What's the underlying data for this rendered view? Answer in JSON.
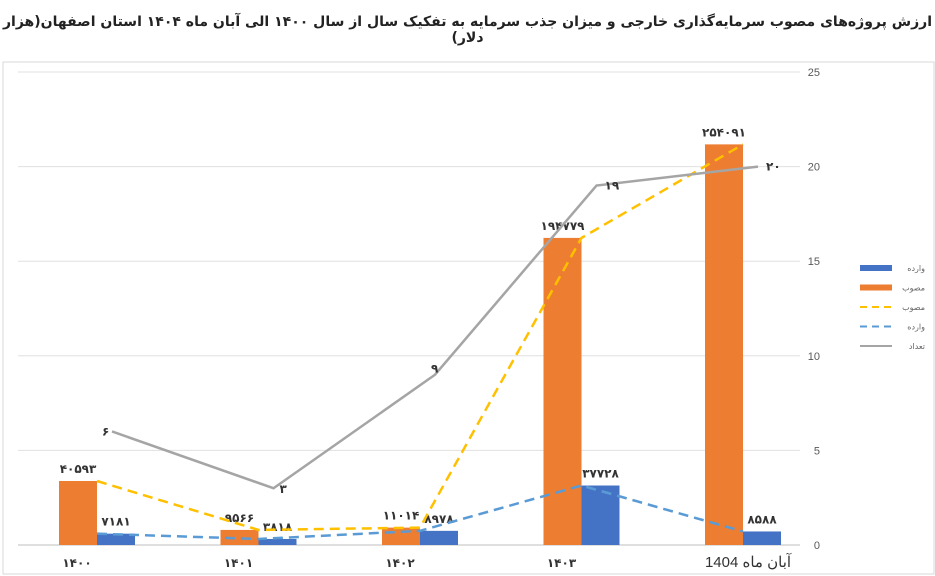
{
  "chart_data": {
    "type": "bar",
    "title": "ارزش پروژه‌های  مصوب سرمایه‌گذاری خارجی و میزان جذب سرمایه به تفکیک سال   از سال ۱۴۰۰ الی آبان ماه ۱۴۰۴ استان اصفهان(هزار دلار)",
    "categories": [
      "۱۴۰۰",
      "۱۴۰۱",
      "۱۴۰۲",
      "۱۴۰۳",
      "1404 آبان ماه"
    ],
    "primary_ylim": [
      0,
      300000
    ],
    "secondary_ylim": [
      0,
      25
    ],
    "secondary_ticks": [
      "0",
      "5",
      "10",
      "15",
      "20",
      "25"
    ],
    "grid": true,
    "legend_position": "right",
    "series": [
      {
        "name": "وارده",
        "kind": "bar",
        "axis": "primary",
        "color": "#4472C4",
        "values": [
          7181,
          3818,
          8978,
          37728,
          8588
        ],
        "labels": [
          "۷۱۸۱",
          "۳۸۱۸",
          "۸۹۷۸",
          "۳۷۷۲۸",
          "۸۵۸۸"
        ]
      },
      {
        "name": "مصوب",
        "kind": "bar",
        "axis": "primary",
        "color": "#ED7D31",
        "values": [
          40593,
          9566,
          11014,
          194779,
          254091
        ],
        "labels": [
          "۴۰۵۹۳",
          "۹۵۶۶",
          "۱۱۰۱۴",
          "۱۹۴۷۷۹",
          "۲۵۴۰۹۱"
        ]
      },
      {
        "name": "مصوب",
        "kind": "dashed-line",
        "axis": "primary",
        "color": "#FFC000",
        "values": [
          40593,
          9566,
          11014,
          194779,
          254091
        ]
      },
      {
        "name": "وارده",
        "kind": "dashed-line",
        "axis": "primary",
        "color": "#5B9BD5",
        "values": [
          7181,
          3818,
          8978,
          37728,
          8588
        ]
      },
      {
        "name": "تعداد",
        "kind": "line",
        "axis": "secondary",
        "color": "#A5A5A5",
        "values": [
          6,
          3,
          9,
          19,
          20
        ],
        "labels": [
          "۶",
          "۳",
          "۹",
          "۱۹",
          "۲۰"
        ]
      }
    ]
  }
}
